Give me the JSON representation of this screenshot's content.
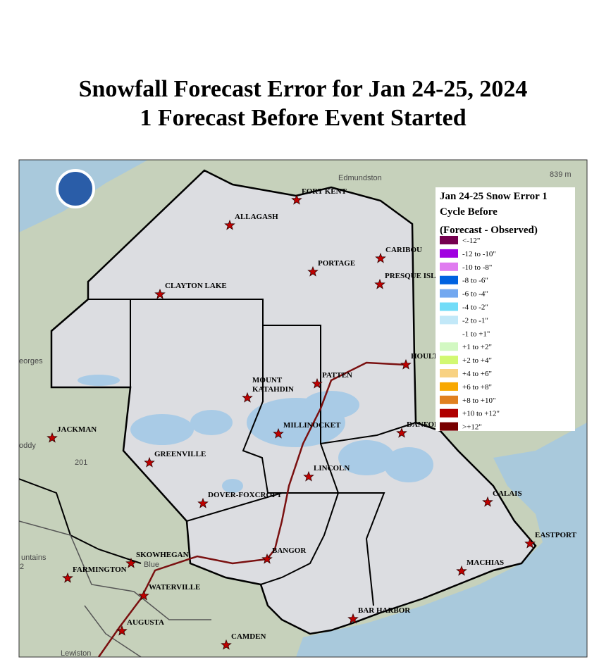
{
  "header": {
    "title": [
      "Snowfall Forecast Error for Jan 24-25, 2024",
      "1 Forecast Before Event Started"
    ]
  },
  "legend": {
    "title": [
      "Jan 24-25 Snow Error 1",
      "Cycle Before",
      "(Forecast - Observed)"
    ],
    "items": [
      {
        "label": "<-12\"",
        "color": "#750050"
      },
      {
        "label": "-12 to -10\"",
        "color": "#a000e0"
      },
      {
        "label": "-10 to -8\"",
        "color": "#e07cf0"
      },
      {
        "label": "-8 to -6\"",
        "color": "#0062e0"
      },
      {
        "label": "-6 to -4\"",
        "color": "#72a8f0"
      },
      {
        "label": "-4 to -2\"",
        "color": "#72dcf8"
      },
      {
        "label": "-2 to -1\"",
        "color": "#c2e8f8"
      },
      {
        "label": "-1 to +1\"",
        "color": "#ffffff"
      },
      {
        "label": "+1 to +2\"",
        "color": "#d2f8c2"
      },
      {
        "label": "+2 to +4\"",
        "color": "#d2f872"
      },
      {
        "label": "+4 to +6\"",
        "color": "#f8d282"
      },
      {
        "label": "+6 to +8\"",
        "color": "#f8a800"
      },
      {
        "label": "+8 to +10\"",
        "color": "#e08020"
      },
      {
        "label": "+10 to +12\"",
        "color": "#b00000"
      },
      {
        "label": ">+12\"",
        "color": "#780000"
      }
    ]
  },
  "cities": [
    {
      "lines": [
        "FORT KENT"
      ]
    },
    {
      "lines": [
        "ALLAGASH"
      ]
    },
    {
      "lines": [
        "CARIBOU"
      ]
    },
    {
      "lines": [
        "PORTAGE"
      ]
    },
    {
      "lines": [
        "PRESQUE ISLE"
      ]
    },
    {
      "lines": [
        "CLAYTON LAKE"
      ]
    },
    {
      "lines": [
        "HOULTON"
      ]
    },
    {
      "lines": [
        "PATTEN"
      ]
    },
    {
      "lines": [
        "MOUNT",
        "KATAHDIN"
      ]
    },
    {
      "lines": [
        "MILLINOCKET"
      ]
    },
    {
      "lines": [
        "JACKMAN"
      ]
    },
    {
      "lines": [
        "DANFORTH"
      ]
    },
    {
      "lines": [
        "GREENVILLE"
      ]
    },
    {
      "lines": [
        "LINCOLN"
      ]
    },
    {
      "lines": [
        "DOVER-FOXCROFT"
      ]
    },
    {
      "lines": [
        "CALAIS"
      ]
    },
    {
      "lines": [
        "EASTPORT"
      ]
    },
    {
      "lines": [
        "BANGOR"
      ]
    },
    {
      "lines": [
        "SKOWHEGAN"
      ]
    },
    {
      "lines": [
        "MACHIAS"
      ]
    },
    {
      "lines": [
        "FARMINGTON"
      ]
    },
    {
      "lines": [
        "WATERVILLE"
      ]
    },
    {
      "lines": [
        "BAR HARBOR"
      ]
    },
    {
      "lines": [
        "AUGUSTA"
      ]
    },
    {
      "lines": [
        "CAMDEN"
      ]
    }
  ],
  "basemap_labels": [
    "Edmundston",
    "839 m",
    "eorges",
    "oddy",
    "201",
    "Blue",
    "untains",
    "2",
    "Lewiston"
  ]
}
